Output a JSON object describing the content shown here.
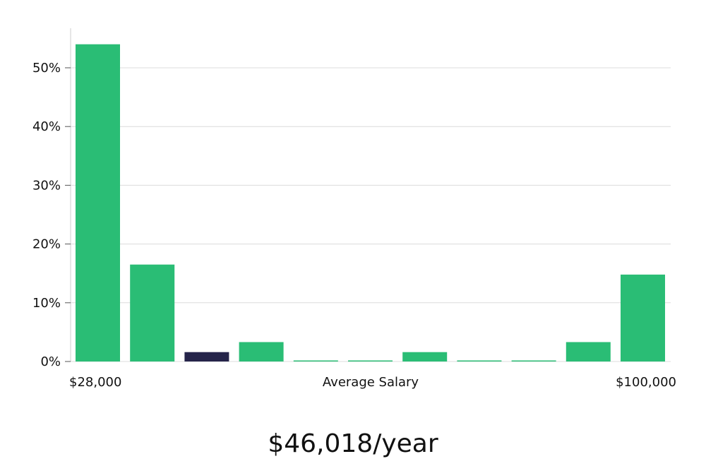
{
  "chart_data": {
    "type": "bar",
    "title": "",
    "xlabel": "Average Salary",
    "ylabel": "",
    "x_min_label": "$28,000",
    "x_max_label": "$100,000",
    "ylim": [
      0,
      0.55
    ],
    "yticks": [
      0,
      0.1,
      0.2,
      0.3,
      0.4,
      0.5
    ],
    "ytick_labels": [
      "0%",
      "10%",
      "20%",
      "30%",
      "40%",
      "50%"
    ],
    "grid": true,
    "values": [
      0.54,
      0.165,
      0.016,
      0.033,
      0.001,
      0.001,
      0.016,
      0.001,
      0.001,
      0.033,
      0.148
    ],
    "highlight_index": 2,
    "colors": {
      "bar": "#2abd75",
      "highlight": "#25244a",
      "grid": "#dcdcdc",
      "axis": "#cccccc"
    }
  },
  "summary": {
    "average_salary": "$46,018/year"
  }
}
